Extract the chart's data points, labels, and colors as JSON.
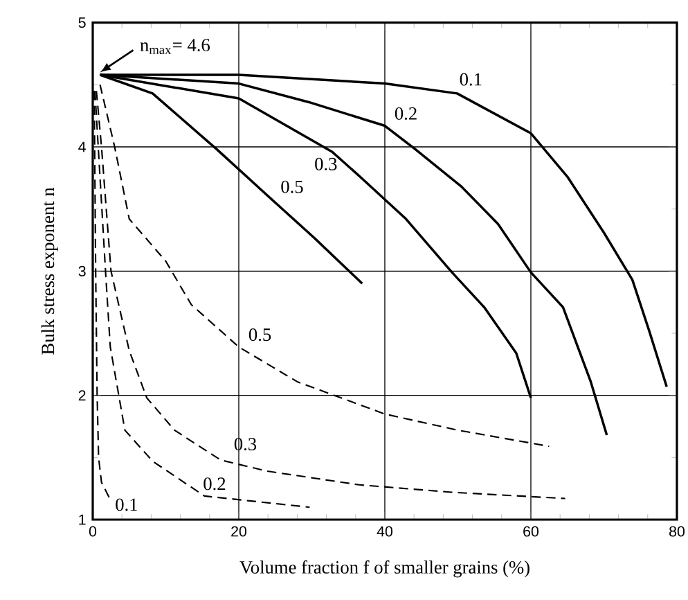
{
  "chart_data": {
    "type": "line",
    "xlabel": "Volume fraction f of smaller grains   (%)",
    "ylabel": "Bulk stress exponent  n",
    "xlim": [
      0,
      80
    ],
    "ylim": [
      1,
      5
    ],
    "xticks": [
      0,
      20,
      40,
      60,
      80
    ],
    "yticks": [
      1,
      2,
      3,
      4,
      5
    ],
    "grid": true,
    "marker": "none",
    "series": [
      {
        "name": "0.1",
        "color": "#000000",
        "line_style": "solid",
        "x": [
          1,
          20,
          40,
          49.9,
          60,
          65,
          70,
          73.9,
          76.2,
          78.6
        ],
        "values": [
          4.58,
          4.58,
          4.51,
          4.43,
          4.11,
          3.76,
          3.31,
          2.93,
          2.52,
          2.07
        ]
      },
      {
        "name": "0.2",
        "color": "#000000",
        "line_style": "solid",
        "x": [
          1,
          20,
          29.6,
          40,
          44.2,
          50.5,
          55.5,
          60,
          64.4,
          68.2,
          70.4
        ],
        "values": [
          4.58,
          4.51,
          4.36,
          4.17,
          3.98,
          3.68,
          3.38,
          2.99,
          2.71,
          2.11,
          1.68
        ]
      },
      {
        "name": "0.3",
        "color": "#000000",
        "line_style": "solid",
        "x": [
          1,
          20,
          32.8,
          36.6,
          42.9,
          49.2,
          53.6,
          58,
          60
        ],
        "values": [
          4.58,
          4.39,
          3.96,
          3.76,
          3.42,
          2.99,
          2.71,
          2.34,
          1.98
        ]
      },
      {
        "name": "0.5",
        "color": "#000000",
        "line_style": "solid",
        "x": [
          1,
          8.2,
          17,
          23.9,
          30.3,
          36.9
        ],
        "values": [
          4.58,
          4.43,
          3.98,
          3.61,
          3.27,
          2.9
        ]
      },
      {
        "name": "0.1",
        "color": "#000000",
        "line_style": "dashed",
        "x": [
          0.2,
          0.4,
          0.6,
          0.8,
          1.2,
          2.5
        ],
        "values": [
          4.45,
          3.0,
          2.0,
          1.5,
          1.3,
          1.15
        ]
      },
      {
        "name": "0.2",
        "color": "#000000",
        "line_style": "dashed",
        "x": [
          0.3,
          1.8,
          2.4,
          4.4,
          8.2,
          15.3,
          21.7,
          29.7
        ],
        "values": [
          4.45,
          2.95,
          2.39,
          1.72,
          1.47,
          1.19,
          1.15,
          1.1
        ]
      },
      {
        "name": "0.3",
        "color": "#000000",
        "line_style": "dashed",
        "x": [
          0.5,
          1.2,
          2.5,
          5,
          7.4,
          11.2,
          17.5,
          23.9,
          36.5,
          49.2,
          64.7
        ],
        "values": [
          4.45,
          4.0,
          3.0,
          2.36,
          1.98,
          1.72,
          1.48,
          1.39,
          1.28,
          1.22,
          1.17
        ]
      },
      {
        "name": "0.5",
        "color": "#000000",
        "line_style": "dashed",
        "x": [
          1,
          3,
          5,
          10,
          13.5,
          20,
          28,
          40,
          50,
          62.5
        ],
        "values": [
          4.5,
          4.0,
          3.42,
          3.08,
          2.73,
          2.39,
          2.11,
          1.85,
          1.72,
          1.59
        ]
      }
    ],
    "annotations": [
      {
        "text": "n$_{max}$= 4.6",
        "x": 1,
        "y": 4.6
      }
    ]
  }
}
